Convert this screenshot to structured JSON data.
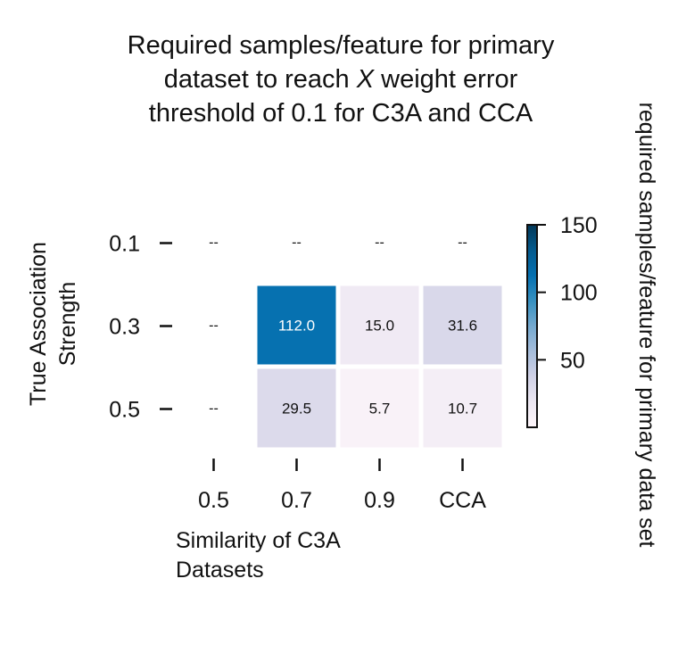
{
  "chart_data": {
    "type": "heatmap",
    "title": {
      "line1": "Required samples/feature for primary",
      "line2_prefix": "dataset to reach ",
      "line2_var": "X",
      "line2_suffix": " weight error",
      "line3": "threshold of 0.1 for C3A and CCA"
    },
    "xlabel": {
      "line1": "Similarity of C3A",
      "line2": "Datasets"
    },
    "ylabel": {
      "line1": "True Association",
      "line2": "Strength"
    },
    "x_categories": [
      "0.5",
      "0.7",
      "0.9",
      "CCA"
    ],
    "y_categories": [
      "0.1",
      "0.3",
      "0.5"
    ],
    "values": [
      [
        null,
        null,
        null,
        null
      ],
      [
        null,
        112.0,
        15.0,
        31.6
      ],
      [
        null,
        29.5,
        5.7,
        10.7
      ]
    ],
    "missing_label": "--",
    "colorbar": {
      "label": "required samples/feature for primary data set",
      "min": 0,
      "max": 150,
      "ticks": [
        50,
        100,
        150
      ],
      "colors": [
        "#fff7fb",
        "#ece7f2",
        "#d0d1e6",
        "#a6bddb",
        "#74a9cf",
        "#3690c0",
        "#0570b0",
        "#045a8d",
        "#023858"
      ]
    }
  }
}
